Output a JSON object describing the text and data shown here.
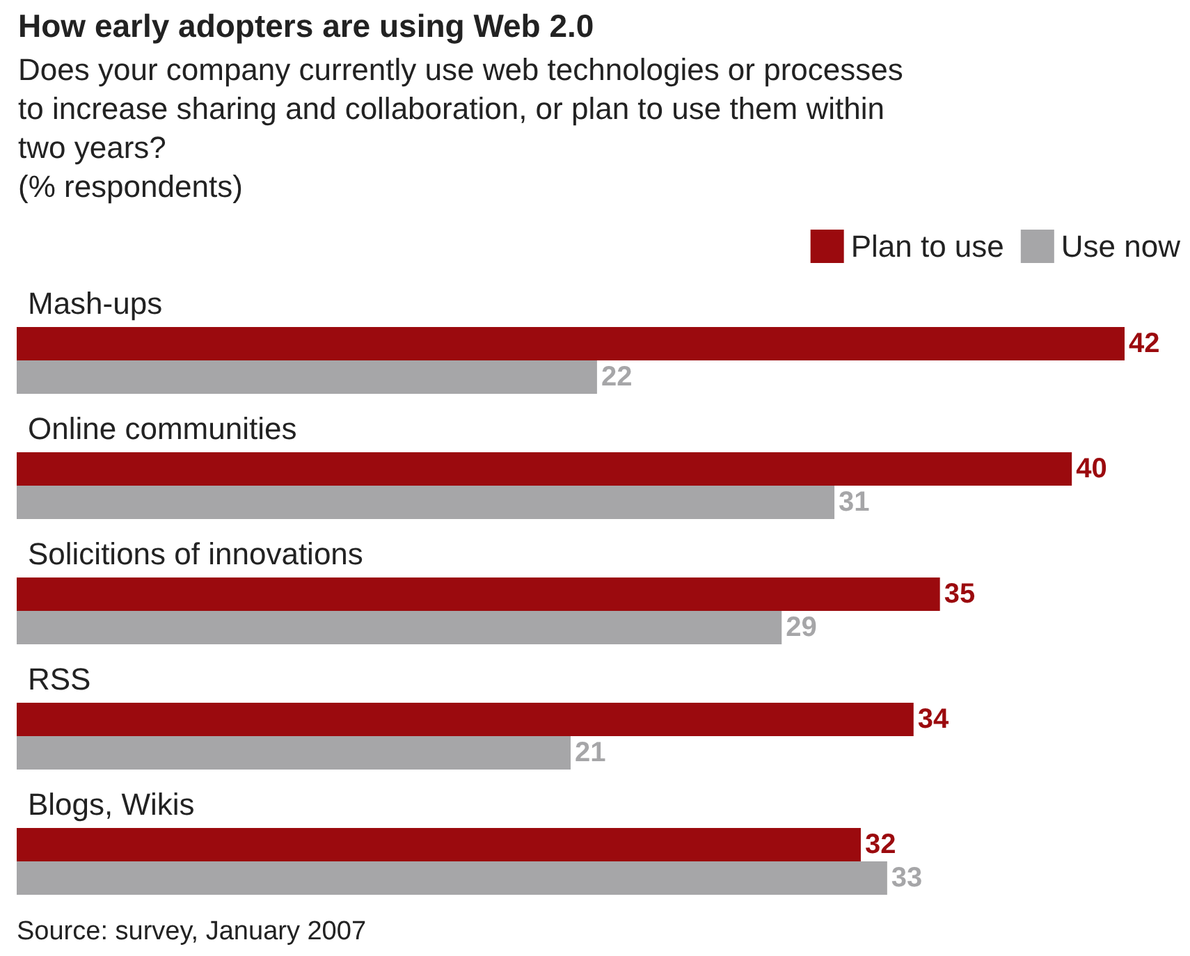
{
  "chart_data": {
    "type": "bar",
    "orientation": "horizontal",
    "title": "How early adopters are using Web 2.0",
    "subtitle": "Does your company currently use web technologies or processes\nto increase sharing and collaboration, or plan to use them within\ntwo years?\n(% respondents)",
    "categories": [
      "Mash-ups",
      "Online communities",
      "Solicitions of innovations",
      "RSS",
      "Blogs, Wikis"
    ],
    "series": [
      {
        "name": "Plan to use",
        "color": "#9b0a0e",
        "values": [
          42,
          40,
          35,
          34,
          32
        ]
      },
      {
        "name": "Use now",
        "color": "#a6a6a8",
        "values": [
          22,
          31,
          29,
          21,
          33
        ]
      }
    ],
    "data_labels": true,
    "legend": "top right",
    "annotations": [
      "Source: survey, January 2007"
    ]
  }
}
